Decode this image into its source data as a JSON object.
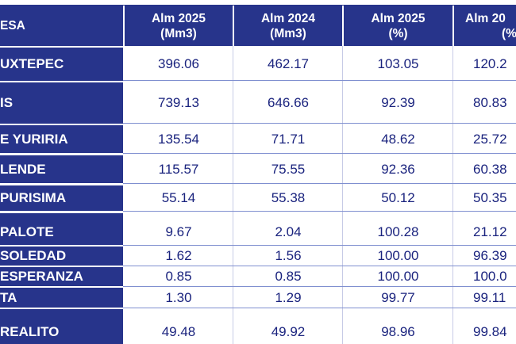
{
  "table": {
    "headers": [
      {
        "line1": "ESA",
        "line2": ""
      },
      {
        "line1": "Alm 2025",
        "line2": "(Mm3)"
      },
      {
        "line1": "Alm 2024",
        "line2": "(Mm3)"
      },
      {
        "line1": "Alm 2025",
        "line2": "(%)"
      },
      {
        "line1": "Alm 20",
        "line2": "(%)"
      }
    ],
    "rows": [
      {
        "name": "UXTEPEC",
        "c1": "396.06",
        "c2": "462.17",
        "c3": "103.05",
        "c4": "120.2"
      },
      {
        "name": "IS",
        "c1": "739.13",
        "c2": "646.66",
        "c3": "92.39",
        "c4": "80.83"
      },
      {
        "name": "E YURIRIA",
        "c1": "135.54",
        "c2": "71.71",
        "c3": "48.62",
        "c4": "25.72"
      },
      {
        "name": "LENDE",
        "c1": "115.57",
        "c2": "75.55",
        "c3": "92.36",
        "c4": "60.38"
      },
      {
        "name": "PURISIMA",
        "c1": "55.14",
        "c2": "55.38",
        "c3": "50.12",
        "c4": "50.35"
      },
      {
        "name": "PALOTE",
        "c1": "9.67",
        "c2": "2.04",
        "c3": "100.28",
        "c4": "21.12"
      },
      {
        "name": "SOLEDAD",
        "c1": "1.62",
        "c2": "1.56",
        "c3": "100.00",
        "c4": "96.39"
      },
      {
        "name": "ESPERANZA",
        "c1": "0.85",
        "c2": "0.85",
        "c3": "100.00",
        "c4": "100.0"
      },
      {
        "name": "TA",
        "c1": "1.30",
        "c2": "1.29",
        "c3": "99.77",
        "c4": "99.11"
      },
      {
        "name": "REALITO",
        "c1": "49.48",
        "c2": "49.92",
        "c3": "98.96",
        "c4": "99.84"
      }
    ]
  },
  "colors": {
    "header_bg": "#27348b",
    "header_text": "#ffffff",
    "cell_text": "#1a237e"
  }
}
